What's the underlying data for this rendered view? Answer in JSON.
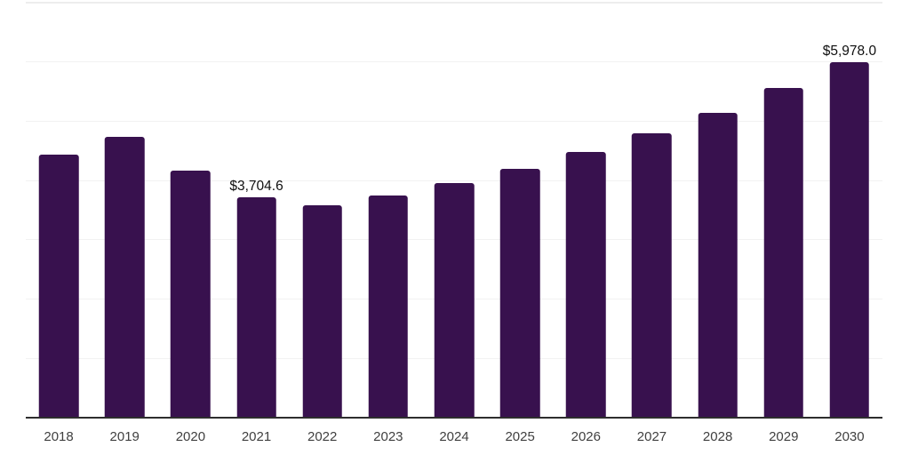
{
  "chart_data": {
    "type": "bar",
    "title": "",
    "xlabel": "",
    "ylabel": "",
    "categories": [
      "2018",
      "2019",
      "2020",
      "2021",
      "2022",
      "2023",
      "2024",
      "2025",
      "2026",
      "2027",
      "2028",
      "2029",
      "2030"
    ],
    "values": [
      4435,
      4725,
      4165,
      3704.6,
      3580,
      3745,
      3955,
      4185,
      4465,
      4790,
      5135,
      5545,
      5978.0
    ],
    "data_labels": {
      "2021": "$3,704.6",
      "2030": "$5,978.0"
    },
    "ylim": [
      0,
      7000
    ],
    "gridline_step": 1000,
    "grid": "horizontal-only",
    "legend": "none",
    "y_axis_tick_labels": "none"
  },
  "colors": {
    "bar_fill": "#38114E",
    "gridline": "#f2f2f2",
    "top_gridline": "#ededed",
    "axis_line": "#2e2e2e",
    "data_label_text": "#0f0f0f",
    "x_label_text": "#404040",
    "background": "#ffffff"
  }
}
